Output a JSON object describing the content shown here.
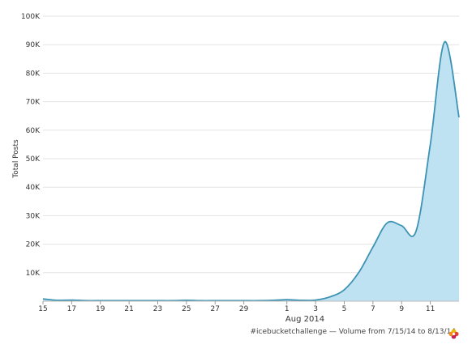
{
  "chart_data": {
    "type": "area",
    "ylabel": "Total Posts",
    "xlabel": "Aug 2014",
    "ylim": [
      0,
      100000
    ],
    "y_ticks": [
      {
        "value": 10000,
        "label": "10K"
      },
      {
        "value": 20000,
        "label": "20K"
      },
      {
        "value": 30000,
        "label": "30K"
      },
      {
        "value": 40000,
        "label": "40K"
      },
      {
        "value": 50000,
        "label": "50K"
      },
      {
        "value": 60000,
        "label": "60K"
      },
      {
        "value": 70000,
        "label": "70K"
      },
      {
        "value": 80000,
        "label": "80K"
      },
      {
        "value": 90000,
        "label": "90K"
      },
      {
        "value": 100000,
        "label": "100K"
      }
    ],
    "x_range": [
      "2014-07-15",
      "2014-08-13"
    ],
    "x_ticks": [
      {
        "date": "2014-07-15",
        "label": "15"
      },
      {
        "date": "2014-07-17",
        "label": "17"
      },
      {
        "date": "2014-07-19",
        "label": "19"
      },
      {
        "date": "2014-07-21",
        "label": "21"
      },
      {
        "date": "2014-07-23",
        "label": "23"
      },
      {
        "date": "2014-07-25",
        "label": "25"
      },
      {
        "date": "2014-07-27",
        "label": "27"
      },
      {
        "date": "2014-07-29",
        "label": "29"
      },
      {
        "date": "2014-08-01",
        "label": "1"
      },
      {
        "date": "2014-08-03",
        "label": "3"
      },
      {
        "date": "2014-08-05",
        "label": "5"
      },
      {
        "date": "2014-08-07",
        "label": "7"
      },
      {
        "date": "2014-08-09",
        "label": "9"
      },
      {
        "date": "2014-08-11",
        "label": "11"
      }
    ],
    "grid": true,
    "colors": {
      "line": "#3d93b3",
      "fill": "#bfe2f2",
      "grid": "#e3e3e3"
    },
    "series": [
      {
        "points": [
          {
            "x": "2014-07-15",
            "y": 800
          },
          {
            "x": "2014-07-16",
            "y": 300
          },
          {
            "x": "2014-07-17",
            "y": 400
          },
          {
            "x": "2014-07-18",
            "y": 200
          },
          {
            "x": "2014-07-19",
            "y": 200
          },
          {
            "x": "2014-07-20",
            "y": 200
          },
          {
            "x": "2014-07-21",
            "y": 200
          },
          {
            "x": "2014-07-22",
            "y": 200
          },
          {
            "x": "2014-07-23",
            "y": 200
          },
          {
            "x": "2014-07-24",
            "y": 200
          },
          {
            "x": "2014-07-25",
            "y": 300
          },
          {
            "x": "2014-07-26",
            "y": 200
          },
          {
            "x": "2014-07-27",
            "y": 200
          },
          {
            "x": "2014-07-28",
            "y": 200
          },
          {
            "x": "2014-07-29",
            "y": 200
          },
          {
            "x": "2014-07-30",
            "y": 200
          },
          {
            "x": "2014-07-31",
            "y": 300
          },
          {
            "x": "2014-08-01",
            "y": 500
          },
          {
            "x": "2014-08-02",
            "y": 300
          },
          {
            "x": "2014-08-03",
            "y": 400
          },
          {
            "x": "2014-08-04",
            "y": 1500
          },
          {
            "x": "2014-08-05",
            "y": 4000
          },
          {
            "x": "2014-08-06",
            "y": 10000
          },
          {
            "x": "2014-08-07",
            "y": 19000
          },
          {
            "x": "2014-08-08",
            "y": 27500
          },
          {
            "x": "2014-08-09",
            "y": 26500
          },
          {
            "x": "2014-08-10",
            "y": 24500
          },
          {
            "x": "2014-08-11",
            "y": 55000
          },
          {
            "x": "2014-08-12",
            "y": 91000
          },
          {
            "x": "2014-08-13",
            "y": 64500
          }
        ]
      }
    ]
  },
  "footer": {
    "text": "#icebucketchallenge — Volume from 7/15/14 to 8/13/14",
    "logo_icon": "flower-logo-icon"
  }
}
